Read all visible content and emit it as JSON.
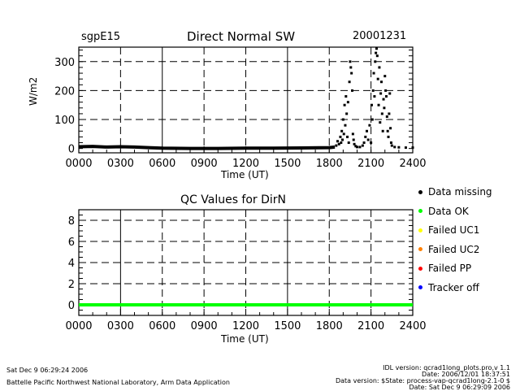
{
  "chart_data": [
    {
      "type": "scatter",
      "site": "sgpE15",
      "title": "Direct Normal SW",
      "date": "20001231",
      "xlabel": "Time (UT)",
      "ylabel": "W/m2",
      "xlim": [
        0,
        24
      ],
      "ylim": [
        -15,
        350
      ],
      "x_tick_labels": [
        "0000",
        "0300",
        "0600",
        "0900",
        "1200",
        "1500",
        "1800",
        "2100",
        "2400"
      ],
      "y_tick_labels": [
        "0",
        "100",
        "200",
        "300"
      ],
      "y_ticks": [
        0,
        100,
        200,
        300
      ],
      "grid": true,
      "marker_color": "#000000",
      "baseline": [
        [
          0,
          6
        ],
        [
          1,
          7
        ],
        [
          2,
          5
        ],
        [
          3,
          6
        ],
        [
          4,
          5
        ],
        [
          5,
          3
        ],
        [
          6,
          1
        ],
        [
          8,
          0
        ],
        [
          10,
          0
        ],
        [
          12,
          1
        ],
        [
          14,
          1
        ],
        [
          16,
          2
        ],
        [
          18,
          3
        ],
        [
          18.4,
          5
        ]
      ],
      "points": [
        [
          18.5,
          10
        ],
        [
          18.6,
          25
        ],
        [
          18.7,
          15
        ],
        [
          18.8,
          40
        ],
        [
          18.85,
          20
        ],
        [
          18.9,
          60
        ],
        [
          18.95,
          30
        ],
        [
          19.0,
          100
        ],
        [
          19.05,
          50
        ],
        [
          19.1,
          150
        ],
        [
          19.15,
          80
        ],
        [
          19.2,
          180
        ],
        [
          19.25,
          120
        ],
        [
          19.3,
          40
        ],
        [
          19.35,
          160
        ],
        [
          19.4,
          20
        ],
        [
          19.45,
          230
        ],
        [
          19.5,
          300
        ],
        [
          19.55,
          280
        ],
        [
          19.6,
          260
        ],
        [
          19.65,
          200
        ],
        [
          19.7,
          50
        ],
        [
          19.75,
          30
        ],
        [
          19.8,
          15
        ],
        [
          19.9,
          8
        ],
        [
          20.0,
          5
        ],
        [
          20.2,
          5
        ],
        [
          20.4,
          10
        ],
        [
          20.5,
          20
        ],
        [
          20.6,
          40
        ],
        [
          20.7,
          60
        ],
        [
          20.8,
          30
        ],
        [
          20.9,
          80
        ],
        [
          21.0,
          20
        ],
        [
          21.05,
          150
        ],
        [
          21.1,
          100
        ],
        [
          21.15,
          200
        ],
        [
          21.2,
          260
        ],
        [
          21.25,
          180
        ],
        [
          21.3,
          300
        ],
        [
          21.35,
          330
        ],
        [
          21.4,
          345
        ],
        [
          21.45,
          320
        ],
        [
          21.5,
          240
        ],
        [
          21.55,
          150
        ],
        [
          21.6,
          280
        ],
        [
          21.65,
          90
        ],
        [
          21.7,
          190
        ],
        [
          21.75,
          230
        ],
        [
          21.8,
          120
        ],
        [
          21.85,
          60
        ],
        [
          21.9,
          170
        ],
        [
          21.95,
          140
        ],
        [
          22.0,
          250
        ],
        [
          22.05,
          200
        ],
        [
          22.1,
          180
        ],
        [
          22.15,
          110
        ],
        [
          22.2,
          60
        ],
        [
          22.25,
          40
        ],
        [
          22.3,
          120
        ],
        [
          22.35,
          190
        ],
        [
          22.4,
          70
        ],
        [
          22.45,
          20
        ],
        [
          22.5,
          10
        ],
        [
          22.7,
          5
        ],
        [
          23.0,
          4
        ],
        [
          23.5,
          3
        ],
        [
          24.0,
          3
        ]
      ]
    },
    {
      "type": "line",
      "title": "QC Values for DirN",
      "xlabel": "Time (UT)",
      "xlim": [
        0,
        24
      ],
      "ylim": [
        -1,
        9
      ],
      "x_tick_labels": [
        "0000",
        "0300",
        "0600",
        "0900",
        "1200",
        "1500",
        "1800",
        "2100",
        "2400"
      ],
      "y_tick_labels": [
        "0",
        "2",
        "4",
        "6",
        "8"
      ],
      "y_ticks": [
        0,
        2,
        4,
        6,
        8
      ],
      "grid": true,
      "series": [
        {
          "color": "#00ff00",
          "x": [
            0,
            24
          ],
          "values": [
            0,
            0
          ]
        }
      ]
    }
  ],
  "legend": [
    {
      "label": "Data missing",
      "color": "#000000"
    },
    {
      "label": "Data OK",
      "color": "#00ff00"
    },
    {
      "label": "Failed UC1",
      "color": "#ffff00"
    },
    {
      "label": "Failed UC2",
      "color": "#ff8000"
    },
    {
      "label": "Failed PP",
      "color": "#ff0000"
    },
    {
      "label": "Tracker off",
      "color": "#0000ff"
    }
  ],
  "footer": {
    "run_date": "Sat Dec  9 06:29:24 2006",
    "lab": "Battelle Pacific Northwest National Laboratory, Arm Data Application",
    "idl_version": "IDL version: qcrad1long_plots.pro,v 1.1",
    "idl_date": "Date: 2006/12/01 18:37:51",
    "data_version": "Data version: $State: process-vap-qcrad1long-2.1-0 $",
    "data_date": "Date: Sat Dec  9 06:29:09 2006"
  }
}
